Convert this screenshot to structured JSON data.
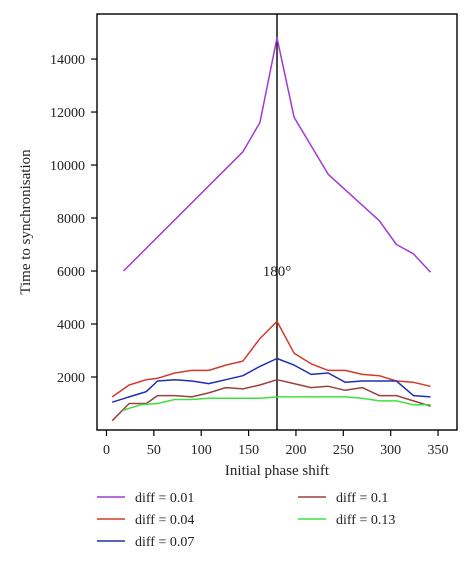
{
  "chart_data": {
    "type": "line",
    "xlabel": "Initial phase shift",
    "ylabel": "Time to synchronisation",
    "xlim": [
      -10,
      370
    ],
    "ylim": [
      0,
      15700
    ],
    "xticks": [
      0,
      50,
      100,
      150,
      200,
      250,
      300,
      350
    ],
    "yticks": [
      2000,
      4000,
      6000,
      8000,
      10000,
      12000,
      14000
    ],
    "grid": false,
    "legend_position": "bottom",
    "annotation": {
      "text": "180°",
      "x": 180,
      "y": 6000
    },
    "vline_x": 180,
    "series": [
      {
        "name": "diff = 0.01",
        "color": "#a23ad6",
        "x": [
          18,
          144,
          162,
          180,
          198,
          234,
          288,
          306,
          324,
          342
        ],
        "y": [
          6000,
          10500,
          11600,
          14800,
          11800,
          9650,
          7900,
          7000,
          6650,
          5950
        ]
      },
      {
        "name": "diff = 0.04",
        "color": "#d33a2c",
        "x": [
          6,
          24,
          42,
          54,
          72,
          90,
          108,
          126,
          144,
          162,
          180,
          198,
          216,
          234,
          252,
          270,
          288,
          306,
          324,
          342
        ],
        "y": [
          1250,
          1700,
          1900,
          1950,
          2150,
          2250,
          2250,
          2450,
          2600,
          3450,
          4100,
          2900,
          2500,
          2250,
          2250,
          2100,
          2050,
          1850,
          1800,
          1650
        ]
      },
      {
        "name": "diff = 0.07",
        "color": "#1f2fb5",
        "x": [
          6,
          24,
          42,
          54,
          72,
          90,
          108,
          126,
          144,
          162,
          180,
          198,
          216,
          234,
          252,
          270,
          288,
          306,
          324,
          342
        ],
        "y": [
          1050,
          1250,
          1450,
          1850,
          1900,
          1850,
          1750,
          1900,
          2050,
          2400,
          2700,
          2450,
          2100,
          2150,
          1800,
          1850,
          1850,
          1850,
          1300,
          1250
        ]
      },
      {
        "name": "diff = 0.1",
        "color": "#9b4040",
        "x": [
          6,
          24,
          42,
          54,
          72,
          90,
          108,
          126,
          144,
          162,
          180,
          198,
          216,
          234,
          252,
          270,
          288,
          306,
          324,
          342
        ],
        "y": [
          350,
          1000,
          1000,
          1300,
          1300,
          1250,
          1400,
          1600,
          1550,
          1700,
          1900,
          1750,
          1600,
          1650,
          1500,
          1600,
          1300,
          1300,
          1100,
          900
        ]
      },
      {
        "name": "diff = 0.13",
        "color": "#3ee03e",
        "x": [
          18,
          36,
          54,
          72,
          90,
          108,
          126,
          144,
          162,
          180,
          198,
          216,
          234,
          252,
          270,
          288,
          306,
          324,
          342
        ],
        "y": [
          750,
          950,
          1000,
          1150,
          1150,
          1200,
          1200,
          1200,
          1200,
          1250,
          1250,
          1250,
          1250,
          1250,
          1200,
          1100,
          1100,
          950,
          950
        ]
      }
    ]
  }
}
